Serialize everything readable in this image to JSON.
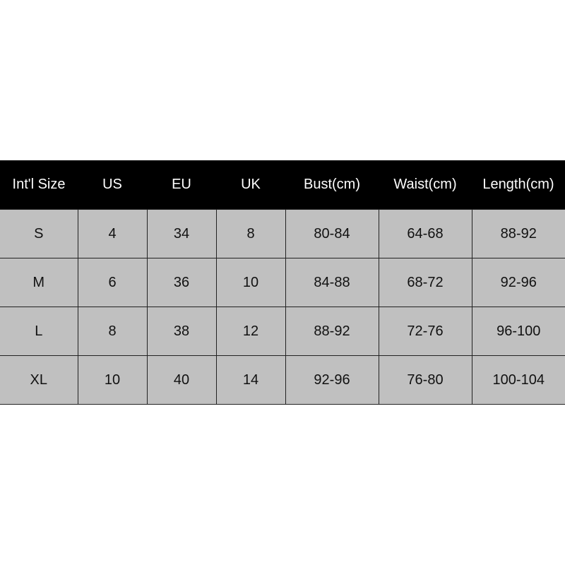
{
  "colors": {
    "header_bg": "#000000",
    "header_text": "#ffffff",
    "cell_bg": "#c0c0c0",
    "cell_text": "#111111"
  },
  "table": {
    "headers": [
      "Int'l Size",
      "US",
      "EU",
      "UK",
      "Bust(cm)",
      "Waist(cm)",
      "Length(cm)"
    ],
    "rows": [
      [
        "S",
        "4",
        "34",
        "8",
        "80-84",
        "64-68",
        "88-92"
      ],
      [
        "M",
        "6",
        "36",
        "10",
        "84-88",
        "68-72",
        "92-96"
      ],
      [
        "L",
        "8",
        "38",
        "12",
        "88-92",
        "72-76",
        "96-100"
      ],
      [
        "XL",
        "10",
        "40",
        "14",
        "92-96",
        "76-80",
        "100-104"
      ]
    ]
  }
}
